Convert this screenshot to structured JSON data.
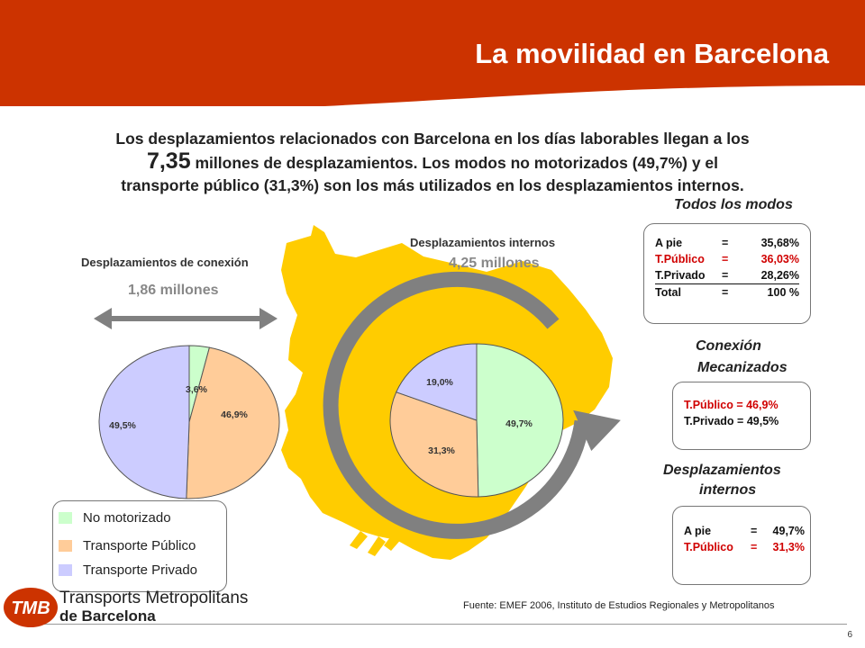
{
  "header": {
    "title": "La movilidad en Barcelona",
    "bg_color": "#cc3300"
  },
  "intro": {
    "line1": "Los desplazamientos relacionados con Barcelona en los días laborables llegan a los",
    "number": "7,35",
    "line2_rest": " millones de desplazamientos. Los modos no motorizados (49,7%) y el",
    "line3": "transporte público (31,3%) son los más utilizados en los desplazamientos internos."
  },
  "chart_data": [
    {
      "type": "pie",
      "title": "Desplazamientos de conexión",
      "subtitle": "1,86 millones",
      "categories": [
        "No motorizado",
        "Transporte Público",
        "Transporte Privado"
      ],
      "values": [
        3.6,
        46.9,
        49.5
      ],
      "labels": [
        "3,6%",
        "46,9%",
        "49,5%"
      ],
      "colors": [
        "#ccffcc",
        "#ffcc99",
        "#ccccff"
      ]
    },
    {
      "type": "pie",
      "title": "Desplazamientos internos",
      "subtitle": "4,25 millones",
      "categories": [
        "No motorizado",
        "Transporte Público",
        "Transporte Privado"
      ],
      "values": [
        49.7,
        31.3,
        19.0
      ],
      "labels": [
        "49,7%",
        "31,3%",
        "19,0%"
      ],
      "colors": [
        "#ccffcc",
        "#ffcc99",
        "#ccccff"
      ]
    }
  ],
  "legend": {
    "items": [
      {
        "label": "No motorizado",
        "color": "#ccffcc"
      },
      {
        "label": "Transporte Público",
        "color": "#ffcc99"
      },
      {
        "label": "Transporte Privado",
        "color": "#ccccff"
      }
    ]
  },
  "todos": {
    "heading": "Todos los modos",
    "rows": [
      {
        "label": "A pie",
        "sep": "=",
        "value": "35,68%",
        "highlight": false
      },
      {
        "label": "T.Público",
        "sep": "=",
        "value": "36,03%",
        "highlight": true
      },
      {
        "label": "T.Privado",
        "sep": "=",
        "value": "28,26%",
        "highlight": false
      },
      {
        "label": "Total",
        "sep": "=",
        "value": "100   %",
        "highlight": false
      }
    ]
  },
  "conexion": {
    "heading1": "Conexión",
    "heading2": "Mecanizados",
    "row1": "T.Público = 46,9%",
    "row2": "T.Privado = 49,5%"
  },
  "internos": {
    "heading1": "Desplazamientos",
    "heading2": "internos",
    "rows": [
      {
        "label": "A pie",
        "sep": "=",
        "value": "49,7%"
      },
      {
        "label": "T.Público",
        "sep": "=",
        "value": "31,3%"
      }
    ]
  },
  "footer": {
    "source": "Fuente: EMEF 2006, Instituto de Estudios Regionales y Metropolitanos",
    "page": "6",
    "logo_text": "TMB",
    "brand_line1": "Transports Metropolitans",
    "brand_line2": "de Barcelona"
  },
  "colors": {
    "map": "#ffcc00",
    "arrow": "#808080",
    "logo": "#cc3300"
  }
}
